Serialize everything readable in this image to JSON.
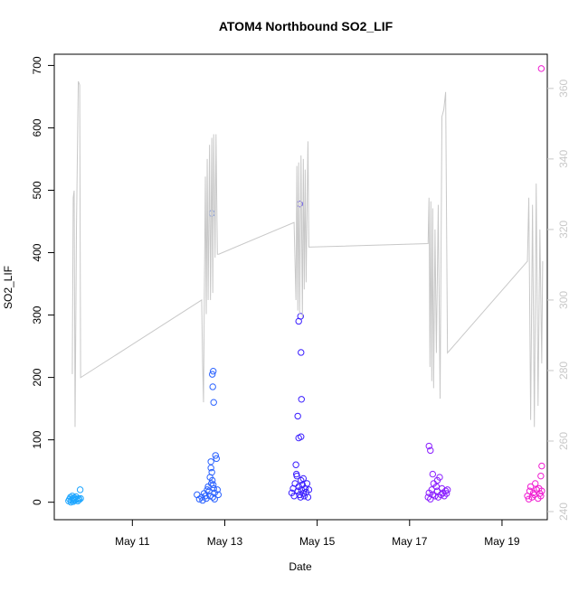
{
  "chart_data": {
    "type": "scatter",
    "title": "ATOM4 Northbound SO2_LIF",
    "x_label": "Date",
    "y_label": "SO2_LIF",
    "xlim": [
      9.31,
      19.98
    ],
    "xticks": [
      {
        "value": 11,
        "label": "May 11"
      },
      {
        "value": 13,
        "label": "May 13"
      },
      {
        "value": 15,
        "label": "May 15"
      },
      {
        "value": 17,
        "label": "May 17"
      },
      {
        "value": 19,
        "label": "May 19"
      }
    ],
    "ylim": [
      -28,
      718
    ],
    "yticks": [
      0,
      100,
      200,
      300,
      400,
      500,
      600,
      700
    ],
    "y2lim": [
      237.7,
      369.7
    ],
    "y2ticks": [
      240,
      260,
      280,
      300,
      320,
      340,
      360
    ],
    "series": [
      {
        "color": "#1ea6ff",
        "x": [
          9.62,
          9.64,
          9.66,
          9.67,
          9.68,
          9.7,
          9.71,
          9.72,
          9.73,
          9.75,
          9.76,
          9.78,
          9.8,
          9.82,
          9.84,
          9.85,
          9.87,
          9.88
        ],
        "values": [
          2,
          5,
          8,
          0,
          3,
          10,
          6,
          1,
          4,
          7,
          3,
          9,
          5,
          2,
          6,
          4,
          20,
          6
        ]
      },
      {
        "color": "#2a62ff",
        "x": [
          12.4,
          12.45,
          12.5,
          12.52,
          12.55,
          12.58,
          12.6,
          12.62,
          12.64,
          12.66,
          12.68,
          12.7,
          12.71,
          12.72,
          12.73,
          12.74,
          12.75,
          12.76,
          12.78,
          12.8,
          12.82,
          12.84,
          12.86,
          12.7,
          12.72,
          12.73,
          12.75,
          12.76,
          12.68,
          12.74,
          12.78
        ],
        "values": [
          12,
          5,
          8,
          3,
          14,
          10,
          6,
          20,
          25,
          18,
          40,
          55,
          30,
          463,
          205,
          185,
          210,
          160,
          15,
          75,
          70,
          20,
          12,
          65,
          48,
          35,
          28,
          22,
          10,
          8,
          5
        ]
      },
      {
        "color": "#3a1eff",
        "x": [
          14.45,
          14.48,
          14.5,
          14.52,
          14.54,
          14.56,
          14.58,
          14.6,
          14.62,
          14.64,
          14.65,
          14.66,
          14.68,
          14.7,
          14.72,
          14.74,
          14.76,
          14.78,
          14.8,
          14.82,
          14.62,
          14.6,
          14.64,
          14.65,
          14.66,
          14.58,
          14.6,
          14.65,
          14.55,
          14.7
        ],
        "values": [
          15,
          22,
          10,
          30,
          60,
          42,
          18,
          25,
          12,
          8,
          35,
          20,
          28,
          14,
          10,
          22,
          16,
          30,
          8,
          20,
          478,
          290,
          298,
          240,
          165,
          138,
          103,
          105,
          45,
          38
        ]
      },
      {
        "color": "#8a1eff",
        "x": [
          17.4,
          17.42,
          17.45,
          17.48,
          17.5,
          17.52,
          17.55,
          17.58,
          17.6,
          17.62,
          17.65,
          17.68,
          17.7,
          17.72,
          17.75,
          17.78,
          17.8,
          17.82,
          17.42,
          17.45,
          17.5,
          17.6
        ],
        "values": [
          8,
          15,
          5,
          20,
          12,
          30,
          10,
          25,
          18,
          8,
          40,
          12,
          22,
          15,
          10,
          18,
          14,
          20,
          90,
          83,
          45,
          35
        ]
      },
      {
        "color": "#f01ed2",
        "x": [
          19.55,
          19.58,
          19.6,
          19.62,
          19.65,
          19.68,
          19.7,
          19.72,
          19.75,
          19.78,
          19.8,
          19.82,
          19.84,
          19.86,
          19.85,
          19.86,
          19.84
        ],
        "values": [
          10,
          5,
          18,
          25,
          8,
          15,
          12,
          30,
          20,
          6,
          22,
          14,
          10,
          18,
          695,
          58,
          42
        ]
      },
      {
        "color": "#c8c8c8",
        "axis": "y2",
        "type": "line",
        "x": [
          9.7,
          9.72,
          9.74,
          9.76,
          9.79,
          9.83,
          9.86,
          9.88,
          12.5,
          12.52,
          12.54,
          12.56,
          12.58,
          12.6,
          12.62,
          12.64,
          12.67,
          12.69,
          12.72,
          12.74,
          12.76,
          12.79,
          12.81,
          12.84,
          12.87,
          14.5,
          14.54,
          14.56,
          14.58,
          14.6,
          14.62,
          14.65,
          14.68,
          14.7,
          14.72,
          14.74,
          14.76,
          14.8,
          14.82,
          17.4,
          17.42,
          17.44,
          17.46,
          17.48,
          17.5,
          17.52,
          17.55,
          17.58,
          17.62,
          17.66,
          17.7,
          17.74,
          17.78,
          17.82,
          19.55,
          19.58,
          19.62,
          19.66,
          19.7,
          19.74,
          19.78,
          19.82,
          19.86,
          19.88
        ],
        "values": [
          279,
          329,
          331,
          264,
          320,
          362,
          361,
          278,
          300,
          282,
          271,
          305,
          335,
          296,
          340,
          300,
          344,
          300,
          346,
          302,
          347,
          312,
          347,
          313,
          313,
          322,
          300,
          338,
          297,
          339,
          296,
          341,
          295,
          340,
          303,
          337,
          305,
          345,
          315,
          316,
          329,
          281,
          328,
          277,
          326,
          275,
          320,
          285,
          327,
          272,
          352,
          354,
          359,
          285,
          311,
          329,
          266,
          327,
          264,
          333,
          270,
          320,
          282,
          311
        ]
      }
    ]
  }
}
